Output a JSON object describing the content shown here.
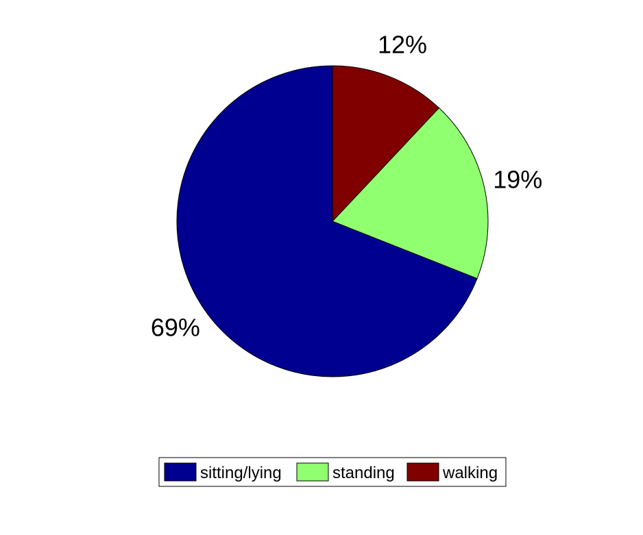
{
  "chart_data": {
    "type": "pie",
    "categories": [
      "sitting/lying",
      "standing",
      "walking"
    ],
    "values": [
      69,
      19,
      12
    ],
    "labels": [
      "69%",
      "19%",
      "12%"
    ],
    "colors": [
      "#000090",
      "#90ff70",
      "#800000"
    ],
    "legend": {
      "position": "bottom",
      "entries": [
        "sitting/lying",
        "standing",
        "walking"
      ]
    }
  }
}
